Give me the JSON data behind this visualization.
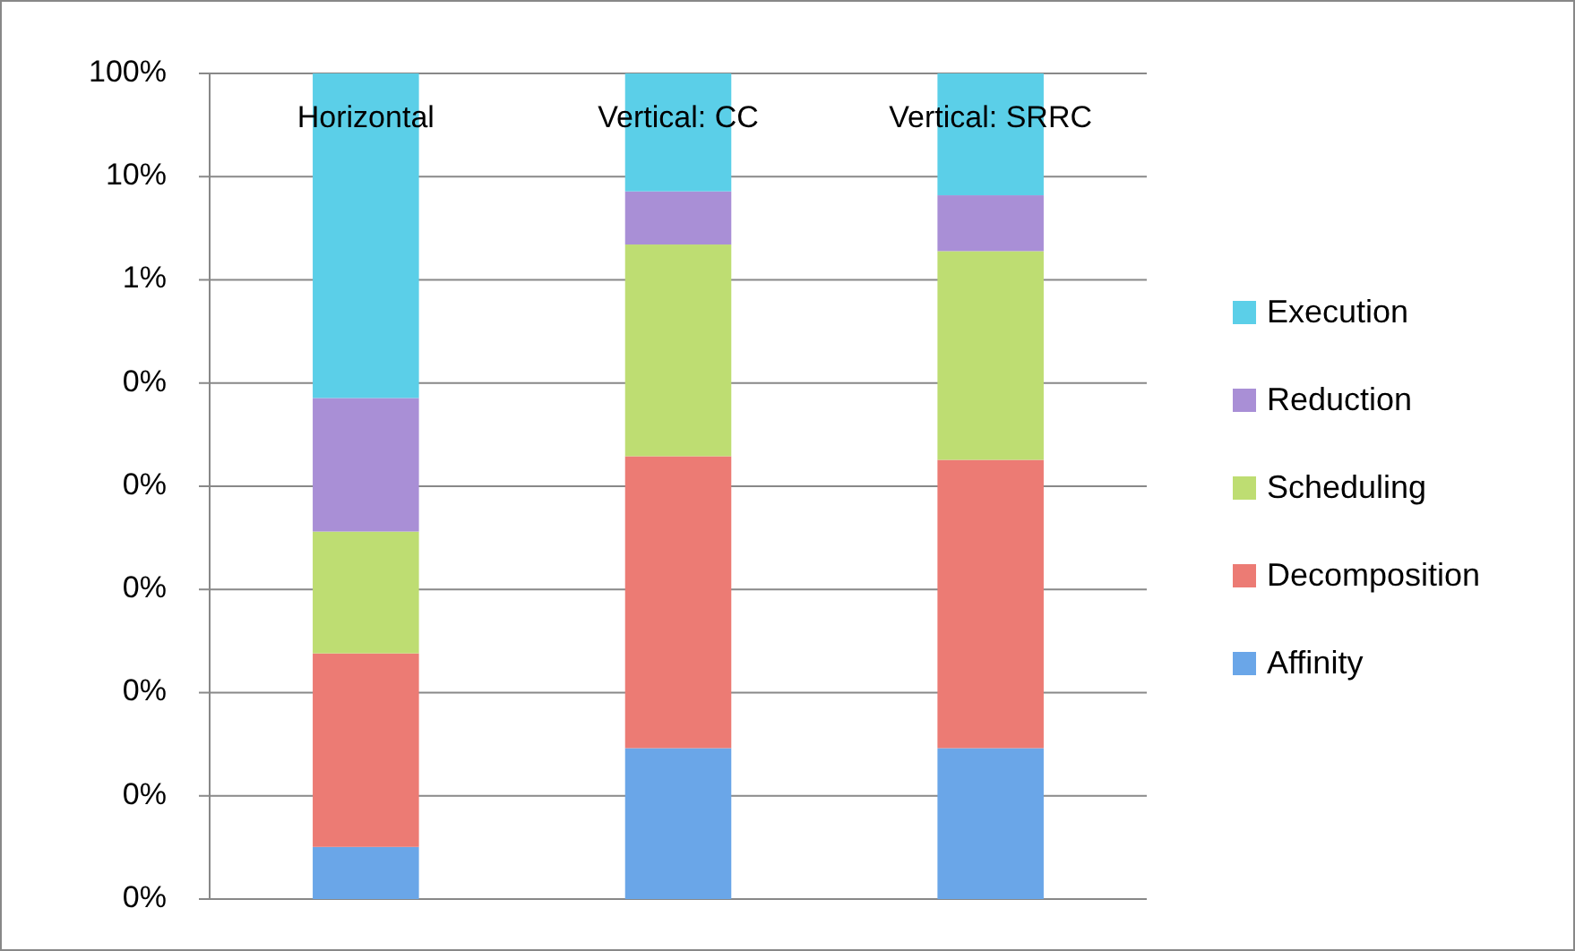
{
  "chart_data": {
    "type": "bar",
    "stacked": true,
    "log": "y",
    "categories": [
      "Horizontal",
      "Vertical: CC",
      "Vertical: SRRC"
    ],
    "series": [
      {
        "name": "Affinity",
        "color": "#6aa6e8",
        "values": [
          3.2e-06,
          2.9e-05,
          2.9e-05
        ]
      },
      {
        "name": "Decomposition",
        "color": "#ec7b74",
        "values": [
          0.000237,
          0.0195,
          0.018
        ]
      },
      {
        "name": "Scheduling",
        "color": "#bedd72",
        "values": [
          0.0034,
          2.18,
          1.88
        ]
      },
      {
        "name": "Reduction",
        "color": "#a98fd6",
        "values": [
          0.068,
          5.0,
          4.7
        ]
      },
      {
        "name": "Execution",
        "color": "#5bcfe8",
        "values": [
          99.93,
          92.8,
          93.4
        ]
      }
    ],
    "ylim": [
      1e-06,
      100
    ],
    "yticks": [
      {
        "value": 1e-06,
        "label": "0%"
      },
      {
        "value": 1e-05,
        "label": "0%"
      },
      {
        "value": 0.0001,
        "label": "0%"
      },
      {
        "value": 0.001,
        "label": "0%"
      },
      {
        "value": 0.01,
        "label": "0%"
      },
      {
        "value": 0.1,
        "label": "0%"
      },
      {
        "value": 1,
        "label": "1%"
      },
      {
        "value": 10,
        "label": "10%"
      },
      {
        "value": 100,
        "label": "100%"
      }
    ],
    "grid": "y",
    "legend": "right"
  }
}
